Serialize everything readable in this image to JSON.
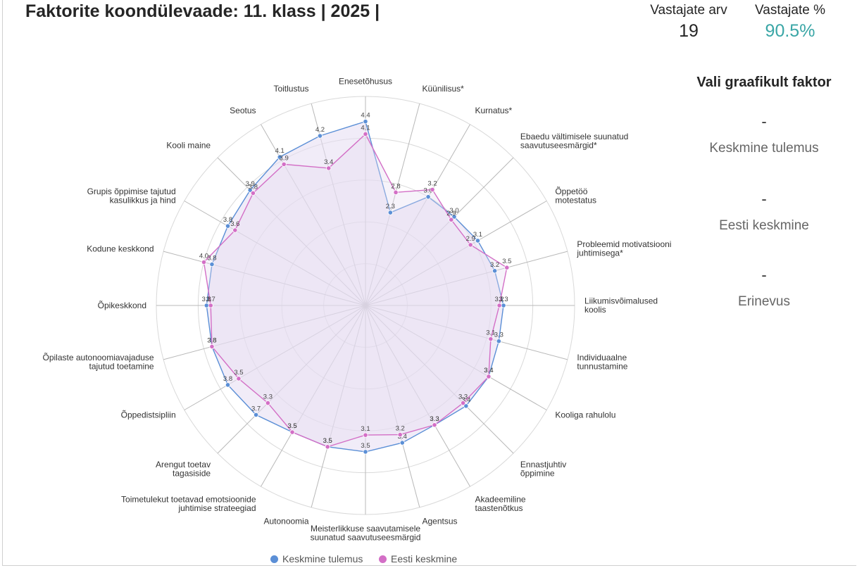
{
  "header": {
    "title": "Faktorite koondülevaade: 11. klass | 2025 |",
    "respondents_label": "Vastajate arv",
    "respondents_value": "19",
    "respondents_pct_label": "Vastajate %",
    "respondents_pct_value": "90.5%"
  },
  "side_panel": {
    "title": "Vali graafikult faktor",
    "mean_value": "-",
    "mean_label": "Keskmine tulemus",
    "estonia_value": "-",
    "estonia_label": "Eesti keskmine",
    "diff_value": "-",
    "diff_label": "Erinevus"
  },
  "colors": {
    "series1": "#5b8fd6",
    "series2": "#d36fc6",
    "fill": "#e6ddf2",
    "grid": "#d9d9d9",
    "spoke": "#b8b8b8",
    "pct_accent": "#3aa6a6"
  },
  "chart_data": {
    "type": "radar",
    "rmax": 5,
    "categories": [
      [
        "Enesetõhusus"
      ],
      [
        "Küünilisus*"
      ],
      [
        "Kurnatus*"
      ],
      [
        "Ebaedu vältimisele suunatud",
        "saavutuseesmärgid*"
      ],
      [
        "Õppetöö",
        "motestatus"
      ],
      [
        "Probleemid motivatsiooni",
        "juhtimisega*"
      ],
      [
        "Liikumisvõimalused",
        "koolis"
      ],
      [
        "Individuaalne",
        "tunnustamine"
      ],
      [
        "Kooliga rahulolu"
      ],
      [
        "Ennastjuhtiv",
        "õppimine"
      ],
      [
        "Akadeemiline",
        "taastenõtkus"
      ],
      [
        "Agentsus"
      ],
      [
        "Meisterlikkuse saavutamisele",
        "suunatud saavutuseesmärgid"
      ],
      [
        "Autonoomia"
      ],
      [
        "Toimetulekut toetavad emotsioonide",
        "juhtimise strateegiad"
      ],
      [
        "Arengut toetav",
        "tagasiside"
      ],
      [
        "Õppedistsipliin"
      ],
      [
        "Õpilaste autonoomiavajaduse",
        "tajutud toetamine"
      ],
      [
        "Õpikeskkond"
      ],
      [
        "Kodune keskkond"
      ],
      [
        "Grupis õppimise tajutud",
        "kasulikkus ja hind"
      ],
      [
        "Kooli maine"
      ],
      [
        "Seotus"
      ],
      [
        "Toitlustus"
      ]
    ],
    "series": [
      {
        "name": "Keskmine tulemus",
        "values": [
          4.4,
          2.3,
          3.0,
          3.0,
          3.1,
          3.2,
          3.3,
          3.3,
          3.4,
          3.4,
          3.3,
          3.4,
          3.5,
          3.5,
          3.5,
          3.7,
          3.8,
          3.8,
          3.8,
          3.8,
          3.8,
          3.9,
          4.1,
          4.2
        ]
      },
      {
        "name": "Eesti keskmine",
        "values": [
          4.1,
          2.8,
          3.2,
          2.9,
          2.9,
          3.5,
          3.2,
          3.1,
          3.4,
          3.3,
          3.3,
          3.2,
          3.1,
          3.5,
          3.5,
          3.3,
          3.5,
          3.8,
          3.7,
          4.0,
          3.6,
          3.8,
          3.9,
          3.4
        ]
      }
    ]
  }
}
